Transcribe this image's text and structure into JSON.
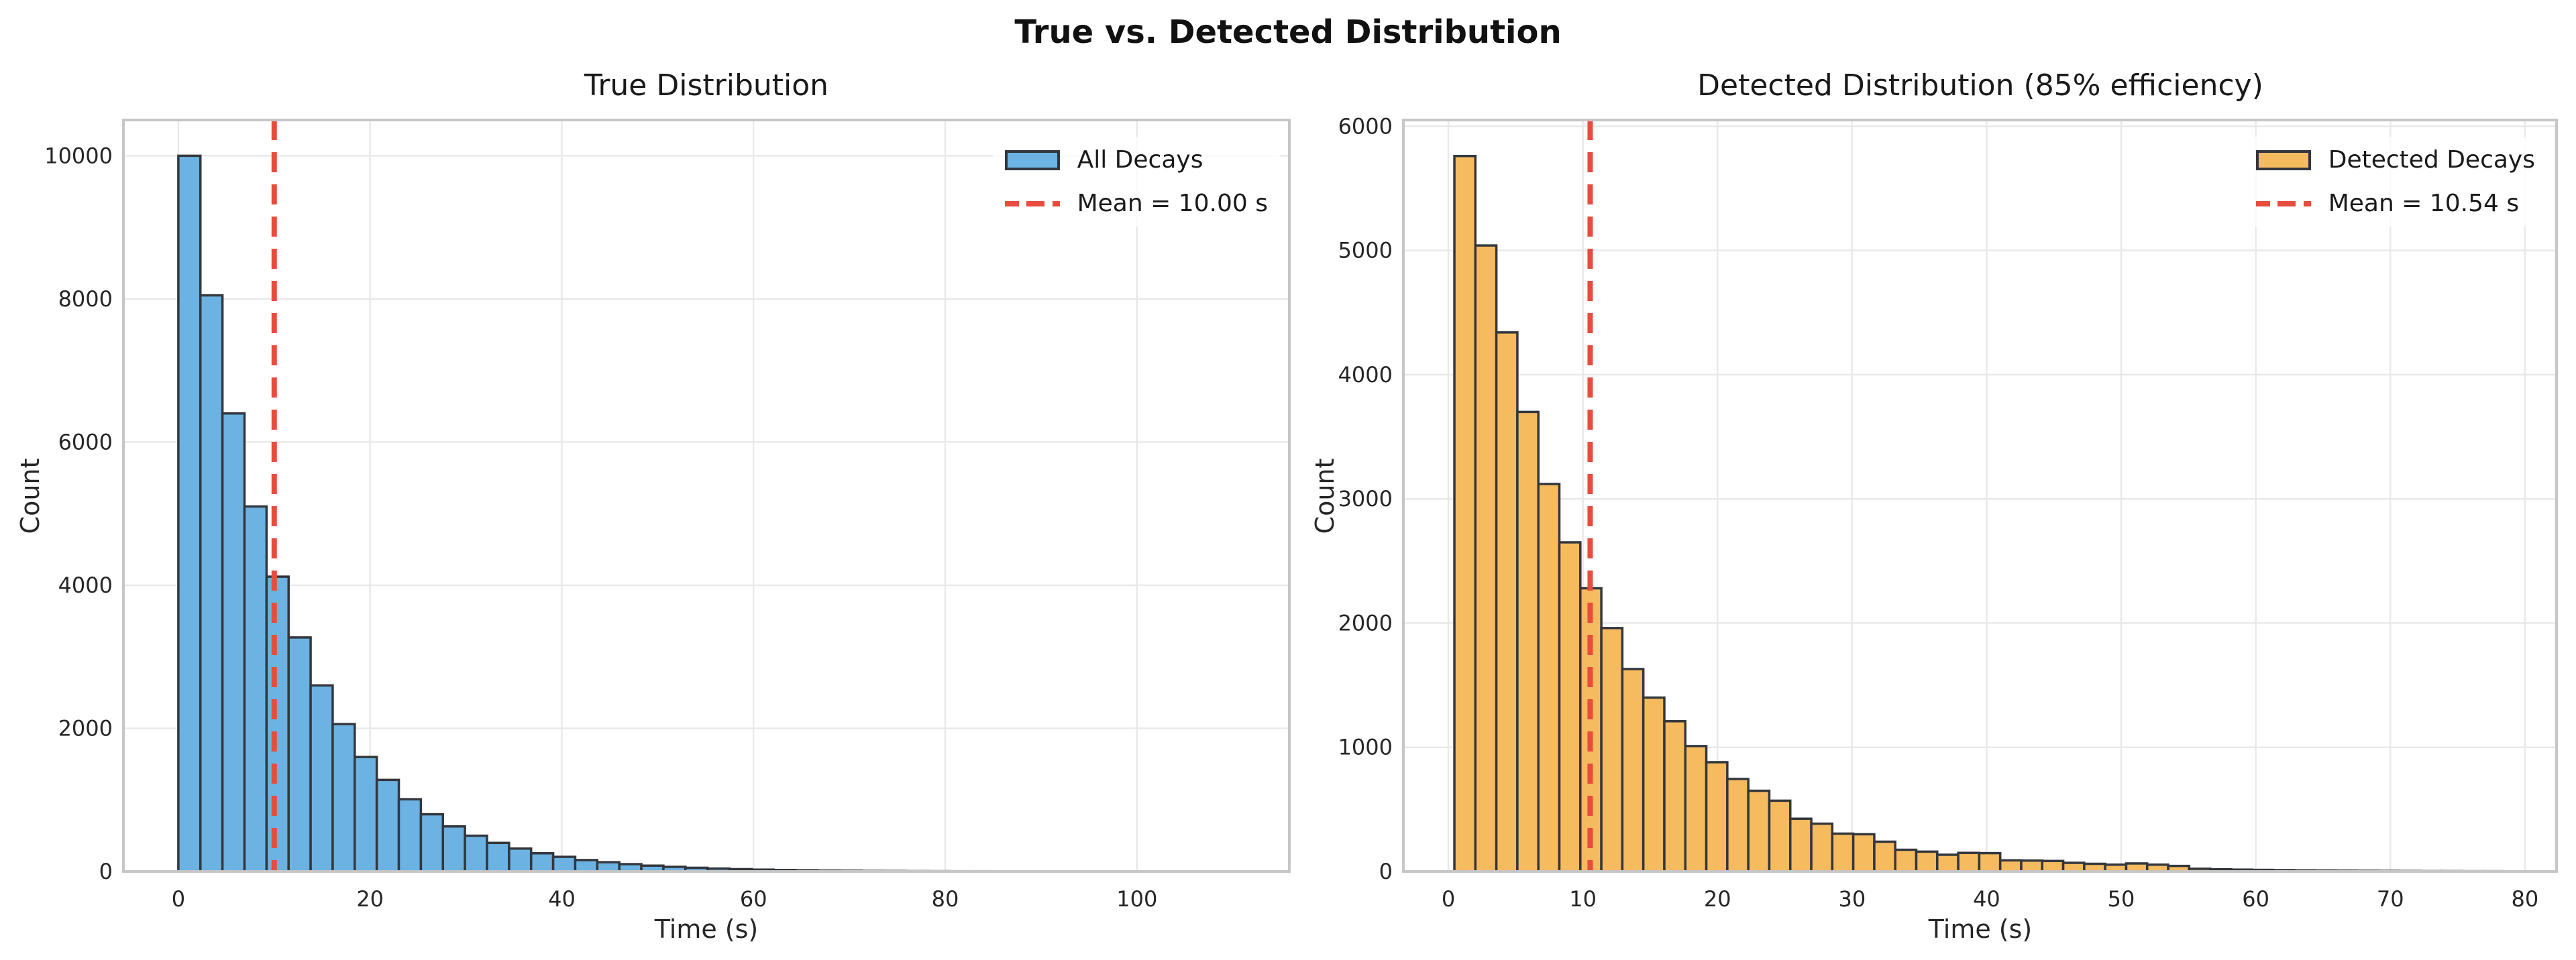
{
  "figure_title": "True vs. Detected Distribution",
  "colors": {
    "background": "#ffffff",
    "grid": "#e9e9e9",
    "spine": "#c6c6c6",
    "bar_edge": "#33373d",
    "blue": "#6cb2e2",
    "orange": "#f6ba5f",
    "mean_red": "#e74c3c",
    "text": "#262626"
  },
  "chart_data": [
    {
      "type": "bar",
      "title": "True Distribution",
      "xlabel": "Time (s)",
      "ylabel": "Count",
      "bar_color": "#6cb2e2",
      "bar_edge_color": "#33373d",
      "grid": true,
      "legend_position": "upper right",
      "legend": [
        {
          "label": "All Decays",
          "type": "patch"
        },
        {
          "label": "Mean = 10.00 s",
          "type": "dashed-line"
        }
      ],
      "mean_line": {
        "x": 10.0,
        "color": "#e74c3c",
        "label": "Mean = 10.00 s"
      },
      "bins": {
        "start": 0.0,
        "width": 2.3
      },
      "values": [
        10000,
        8050,
        6400,
        5100,
        4120,
        3270,
        2600,
        2060,
        1600,
        1280,
        1010,
        800,
        630,
        500,
        400,
        320,
        255,
        205,
        160,
        130,
        103,
        82,
        65,
        52,
        41,
        33,
        26,
        21,
        17,
        13,
        11,
        8,
        7,
        5,
        4,
        3,
        3,
        2,
        2,
        1,
        1,
        0,
        0,
        0,
        0,
        0,
        0,
        0,
        0,
        0
      ],
      "xlim": [
        -5.73,
        115.9
      ],
      "ylim": [
        0,
        10500
      ],
      "xticks": [
        0,
        20,
        40,
        60,
        80,
        100
      ],
      "yticks": [
        0,
        2000,
        4000,
        6000,
        8000,
        10000
      ]
    },
    {
      "type": "bar",
      "title": "Detected Distribution (85% efficiency)",
      "xlabel": "Time (s)",
      "ylabel": "Count",
      "bar_color": "#f6ba5f",
      "bar_edge_color": "#33373d",
      "grid": true,
      "legend_position": "upper right",
      "legend": [
        {
          "label": "Detected Decays",
          "type": "patch"
        },
        {
          "label": "Mean = 10.54 s",
          "type": "dashed-line"
        }
      ],
      "mean_line": {
        "x": 10.54,
        "color": "#e74c3c",
        "label": "Mean = 10.54 s"
      },
      "bins": {
        "start": 0.45,
        "width": 1.56
      },
      "values": [
        5760,
        5040,
        4340,
        3700,
        3120,
        2650,
        2280,
        1960,
        1630,
        1400,
        1210,
        1010,
        880,
        745,
        650,
        570,
        425,
        385,
        305,
        300,
        240,
        175,
        160,
        135,
        150,
        148,
        90,
        88,
        85,
        70,
        62,
        55,
        65,
        55,
        45,
        22,
        18,
        15,
        13,
        11,
        9,
        8,
        7,
        6,
        5,
        4,
        3,
        3,
        2,
        2
      ],
      "xlim": [
        -3.34,
        82.35
      ],
      "ylim": [
        0,
        6050
      ],
      "xticks": [
        0,
        10,
        20,
        30,
        40,
        50,
        60,
        70,
        80
      ],
      "yticks": [
        0,
        1000,
        2000,
        3000,
        4000,
        5000,
        6000
      ]
    }
  ]
}
